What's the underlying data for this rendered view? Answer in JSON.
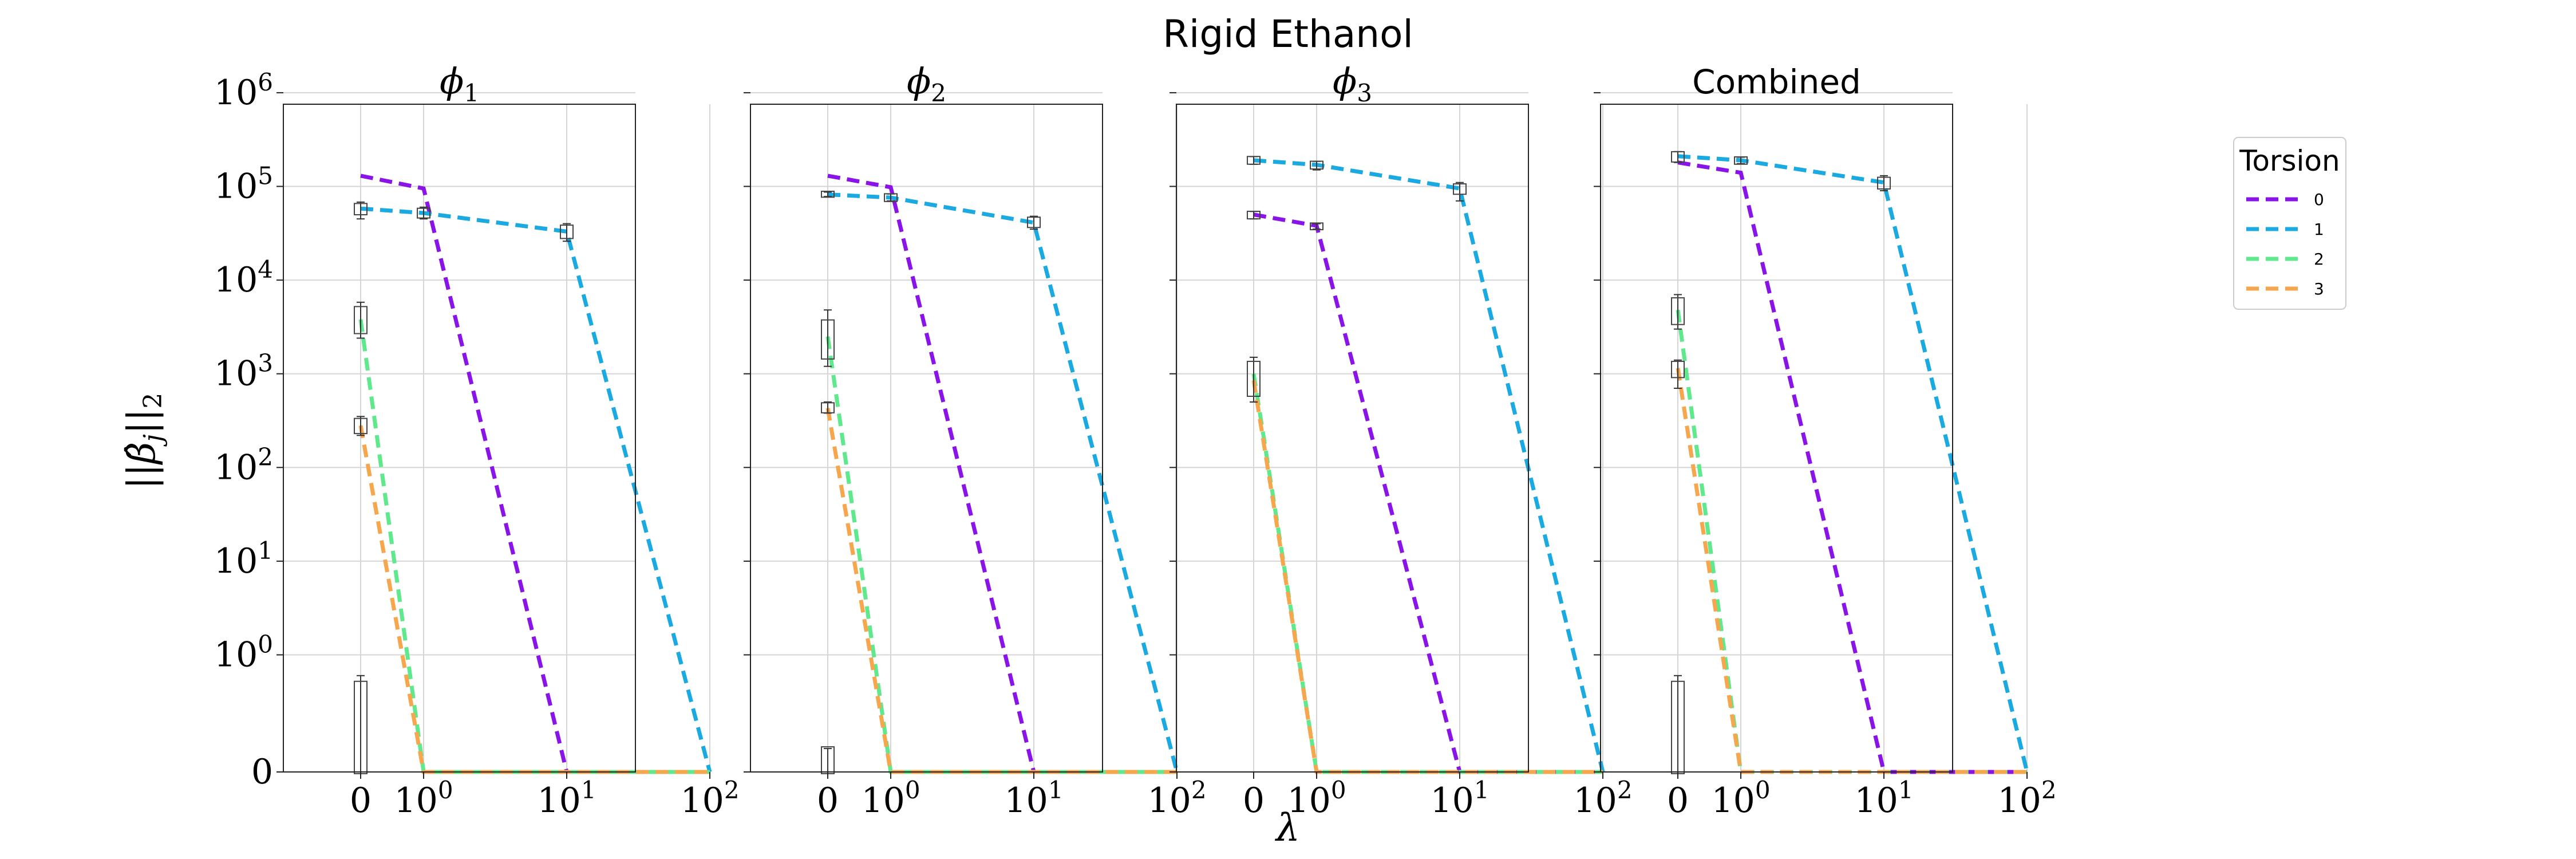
{
  "chart_data": {
    "type": "line",
    "title": "Rigid Ethanol",
    "xlabel": "λ",
    "ylabel": "||β̂_j||₂",
    "x_scale": "symlog",
    "y_scale": "symlog",
    "xlim": [
      -0.3,
      100
    ],
    "ylim": [
      0,
      2000000
    ],
    "x_ticks": [
      {
        "value": 0,
        "label": "0"
      },
      {
        "value": 1,
        "label": "10",
        "sup": "0"
      },
      {
        "value": 10,
        "label": "10",
        "sup": "1"
      },
      {
        "value": 100,
        "label": "10",
        "sup": "2"
      }
    ],
    "y_ticks": [
      {
        "value": 0,
        "label": "0"
      },
      {
        "value": 1,
        "label": "10",
        "sup": "0"
      },
      {
        "value": 10,
        "label": "10",
        "sup": "1"
      },
      {
        "value": 100,
        "label": "10",
        "sup": "2"
      },
      {
        "value": 1000,
        "label": "10",
        "sup": "3"
      },
      {
        "value": 10000,
        "label": "10",
        "sup": "4"
      },
      {
        "value": 100000,
        "label": "10",
        "sup": "5"
      },
      {
        "value": 1000000,
        "label": "10",
        "sup": "6"
      }
    ],
    "grid": true,
    "legend": {
      "title": "Torsion",
      "placement": "right"
    },
    "x": [
      0,
      1,
      10,
      100
    ],
    "panels": [
      {
        "title_base": "ϕ",
        "title_sub": "1",
        "sans": false,
        "series": [
          {
            "name": "0",
            "color": "#8a14e8",
            "values": [
              130000,
              95000,
              0,
              0
            ]
          },
          {
            "name": "1",
            "color": "#1aa9e0",
            "values": [
              58000,
              52000,
              33000,
              0
            ]
          },
          {
            "name": "2",
            "color": "#5fe88c",
            "values": [
              3800,
              0,
              0,
              0
            ]
          },
          {
            "name": "3",
            "color": "#f6a64c",
            "values": [
              280,
              0,
              0,
              0
            ]
          }
        ],
        "boxes": [
          {
            "x": 0,
            "q1": 52000,
            "q3": 63000,
            "lo": 45000,
            "hi": 68000
          },
          {
            "x": 1,
            "q1": 48000,
            "q3": 56000,
            "lo": 45000,
            "hi": 60000
          },
          {
            "x": 10,
            "q1": 29000,
            "q3": 37000,
            "lo": 26000,
            "hi": 40000
          },
          {
            "x": 0,
            "q1": 2800,
            "q3": 5000,
            "lo": 2400,
            "hi": 5800
          },
          {
            "x": 0,
            "q1": 240,
            "q3": 320,
            "lo": 220,
            "hi": 350
          },
          {
            "x": 0,
            "q1": 0,
            "q3": 0.5,
            "lo": 0,
            "hi": 0.6
          }
        ]
      },
      {
        "title_base": "ϕ",
        "title_sub": "2",
        "sans": false,
        "series": [
          {
            "name": "0",
            "color": "#8a14e8",
            "values": [
              130000,
              98000,
              0,
              0
            ]
          },
          {
            "name": "1",
            "color": "#1aa9e0",
            "values": [
              82000,
              76000,
              41000,
              0
            ]
          },
          {
            "name": "2",
            "color": "#5fe88c",
            "values": [
              2500,
              0,
              0,
              0
            ]
          },
          {
            "name": "3",
            "color": "#f6a64c",
            "values": [
              430,
              0,
              0,
              0
            ]
          }
        ],
        "boxes": [
          {
            "x": 0,
            "q1": 80000,
            "q3": 85000,
            "lo": 78000,
            "hi": 87000
          },
          {
            "x": 1,
            "q1": 72000,
            "q3": 80000,
            "lo": 70000,
            "hi": 83000
          },
          {
            "x": 10,
            "q1": 38000,
            "q3": 45000,
            "lo": 35000,
            "hi": 48000
          },
          {
            "x": 0,
            "q1": 1500,
            "q3": 3600,
            "lo": 1200,
            "hi": 4800
          },
          {
            "x": 0,
            "q1": 400,
            "q3": 470,
            "lo": 380,
            "hi": 500
          },
          {
            "x": 0,
            "q1": 0,
            "q3": 0.1,
            "lo": 0,
            "hi": 0.1
          }
        ]
      },
      {
        "title_base": "ϕ",
        "title_sub": "3",
        "sans": false,
        "series": [
          {
            "name": "0",
            "color": "#8a14e8",
            "values": [
              50000,
              38000,
              0,
              0
            ]
          },
          {
            "name": "1",
            "color": "#1aa9e0",
            "values": [
              190000,
              170000,
              95000,
              0
            ]
          },
          {
            "name": "2",
            "color": "#5fe88c",
            "values": [
              1000,
              0,
              0,
              0
            ]
          },
          {
            "name": "3",
            "color": "#f6a64c",
            "values": [
              850,
              0,
              0,
              0
            ]
          }
        ],
        "boxes": [
          {
            "x": 0,
            "q1": 180000,
            "q3": 200000,
            "lo": 172000,
            "hi": 208000
          },
          {
            "x": 0,
            "q1": 47000,
            "q3": 52000,
            "lo": 45000,
            "hi": 54000
          },
          {
            "x": 1,
            "q1": 160000,
            "q3": 178000,
            "lo": 150000,
            "hi": 185000
          },
          {
            "x": 1,
            "q1": 36000,
            "q3": 39000,
            "lo": 35000,
            "hi": 40000
          },
          {
            "x": 10,
            "q1": 86000,
            "q3": 102000,
            "lo": 70000,
            "hi": 110000
          },
          {
            "x": 0,
            "q1": 600,
            "q3": 1300,
            "lo": 500,
            "hi": 1500
          }
        ]
      },
      {
        "title_base": "Combined",
        "title_sub": "",
        "sans": true,
        "series": [
          {
            "name": "0",
            "color": "#8a14e8",
            "values": [
              180000,
              140000,
              0,
              0
            ]
          },
          {
            "name": "1",
            "color": "#1aa9e0",
            "values": [
              210000,
              190000,
              110000,
              0
            ]
          },
          {
            "name": "2",
            "color": "#5fe88c",
            "values": [
              4800,
              0,
              0,
              0
            ]
          },
          {
            "name": "3",
            "color": "#f6a64c",
            "values": [
              1150,
              0,
              0,
              0
            ]
          }
        ],
        "boxes": [
          {
            "x": 0,
            "q1": 190000,
            "q3": 225000,
            "lo": 180000,
            "hi": 235000
          },
          {
            "x": 1,
            "q1": 180000,
            "q3": 198000,
            "lo": 175000,
            "hi": 205000
          },
          {
            "x": 10,
            "q1": 98000,
            "q3": 120000,
            "lo": 90000,
            "hi": 130000
          },
          {
            "x": 0,
            "q1": 3500,
            "q3": 6200,
            "lo": 3000,
            "hi": 7000
          },
          {
            "x": 0,
            "q1": 950,
            "q3": 1300,
            "lo": 700,
            "hi": 1400
          },
          {
            "x": 0,
            "q1": 0,
            "q3": 0.5,
            "lo": 0,
            "hi": 0.6
          }
        ]
      }
    ]
  }
}
